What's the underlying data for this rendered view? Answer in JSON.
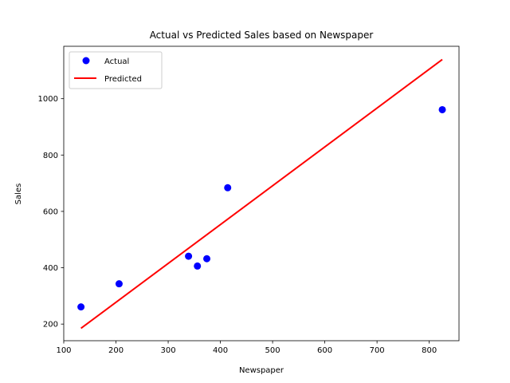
{
  "chart_data": {
    "type": "scatter",
    "title": "Actual vs Predicted Sales based on Newspaper",
    "xlabel": "Newspaper",
    "ylabel": "Sales",
    "xlim": [
      100,
      857
    ],
    "ylim": [
      141,
      1186
    ],
    "xticks": [
      100,
      200,
      300,
      400,
      500,
      600,
      700,
      800
    ],
    "yticks": [
      200,
      400,
      600,
      800,
      1000
    ],
    "grid": false,
    "legend_position": "top-left",
    "series": [
      {
        "name": "Actual",
        "kind": "scatter",
        "color": "#0000ff",
        "points": [
          {
            "x": 133,
            "y": 261
          },
          {
            "x": 206,
            "y": 343
          },
          {
            "x": 339,
            "y": 441
          },
          {
            "x": 356,
            "y": 406
          },
          {
            "x": 374,
            "y": 432
          },
          {
            "x": 414,
            "y": 684
          },
          {
            "x": 825,
            "y": 961
          }
        ]
      },
      {
        "name": "Predicted",
        "kind": "line",
        "color": "#ff0000",
        "points": [
          {
            "x": 133,
            "y": 185
          },
          {
            "x": 825,
            "y": 1139
          }
        ]
      }
    ]
  }
}
